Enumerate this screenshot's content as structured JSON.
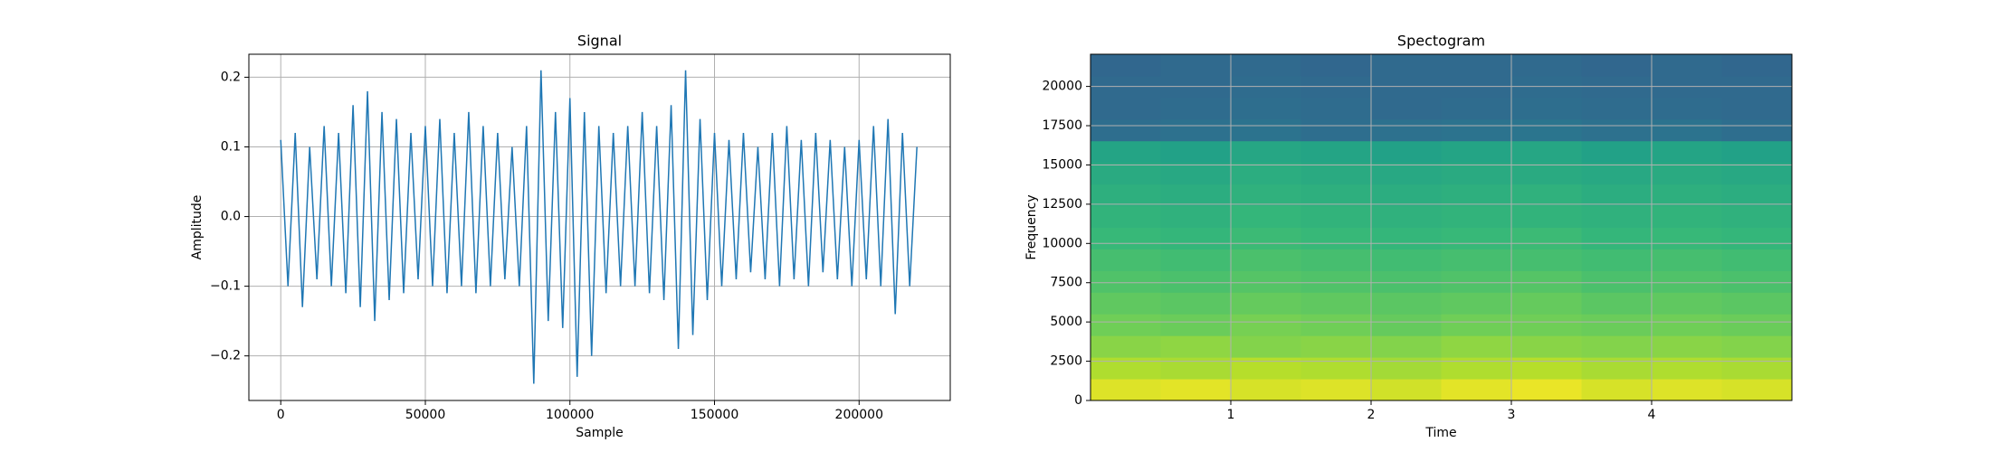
{
  "chart_data": [
    {
      "type": "line",
      "title": "Signal",
      "x_label": "Sample",
      "y_label": "Amplitude",
      "color": "#1f77b4",
      "grid": true,
      "xlim": [
        -11025,
        231525
      ],
      "ylim": [
        -0.264,
        0.233
      ],
      "xticks": [
        0,
        50000,
        100000,
        150000,
        200000
      ],
      "yticks": [
        {
          "value": -0.2,
          "label": "−0.2"
        },
        {
          "value": -0.1,
          "label": "−0.1"
        },
        {
          "value": 0,
          "label": "0.0"
        },
        {
          "value": 0.1,
          "label": "0.1"
        },
        {
          "value": 0.2,
          "label": "0.2"
        }
      ],
      "x": [
        0,
        2500,
        5000,
        7500,
        10000,
        12500,
        15000,
        17500,
        20000,
        22500,
        25000,
        27500,
        30000,
        32500,
        35000,
        37500,
        40000,
        42500,
        45000,
        47500,
        50000,
        52500,
        55000,
        57500,
        60000,
        62500,
        65000,
        67500,
        70000,
        72500,
        75000,
        77500,
        80000,
        82500,
        85000,
        87500,
        90000,
        92500,
        95000,
        97500,
        100000,
        102500,
        105000,
        107500,
        110000,
        112500,
        115000,
        117500,
        120000,
        122500,
        125000,
        127500,
        130000,
        132500,
        135000,
        137500,
        140000,
        142500,
        145000,
        147500,
        150000,
        152500,
        155000,
        157500,
        160000,
        162500,
        165000,
        167500,
        170000,
        172500,
        175000,
        177500,
        180000,
        182500,
        185000,
        187500,
        190000,
        192500,
        195000,
        197500,
        200000,
        202500,
        205000,
        207500,
        210000,
        212500,
        215000,
        217500,
        220000
      ],
      "values": [
        0.11,
        -0.1,
        0.12,
        -0.13,
        0.1,
        -0.09,
        0.13,
        -0.1,
        0.12,
        -0.11,
        0.16,
        -0.13,
        0.18,
        -0.15,
        0.15,
        -0.12,
        0.14,
        -0.11,
        0.12,
        -0.09,
        0.13,
        -0.1,
        0.14,
        -0.11,
        0.12,
        -0.1,
        0.15,
        -0.11,
        0.13,
        -0.1,
        0.12,
        -0.09,
        0.1,
        -0.1,
        0.13,
        -0.24,
        0.21,
        -0.15,
        0.15,
        -0.16,
        0.17,
        -0.23,
        0.15,
        -0.2,
        0.13,
        -0.11,
        0.12,
        -0.1,
        0.13,
        -0.1,
        0.15,
        -0.11,
        0.13,
        -0.12,
        0.16,
        -0.19,
        0.21,
        -0.17,
        0.14,
        -0.12,
        0.12,
        -0.1,
        0.11,
        -0.09,
        0.12,
        -0.08,
        0.1,
        -0.09,
        0.12,
        -0.1,
        0.13,
        -0.09,
        0.11,
        -0.1,
        0.12,
        -0.08,
        0.11,
        -0.09,
        0.1,
        -0.1,
        0.11,
        -0.09,
        0.13,
        -0.1,
        0.14,
        -0.14,
        0.12,
        -0.1,
        0.1
      ]
    },
    {
      "type": "heatmap",
      "title": "Spectogram",
      "x_label": "Time",
      "y_label": "Frequency",
      "colormap": "viridis",
      "grid": true,
      "xlim": [
        0,
        5
      ],
      "ylim": [
        0,
        22050
      ],
      "zlim": [
        -150,
        -50
      ],
      "xticks": [
        1,
        2,
        3,
        4
      ],
      "yticks": [
        0,
        2500,
        5000,
        7500,
        10000,
        12500,
        15000,
        17500,
        20000
      ],
      "z": [
        [
          -55,
          -54,
          -56,
          -55,
          -57,
          -54,
          -53,
          -56,
          -55,
          -56
        ],
        [
          -62,
          -63,
          -61,
          -62,
          -64,
          -62,
          -61,
          -63,
          -62,
          -63
        ],
        [
          -68,
          -67,
          -69,
          -68,
          -69,
          -67,
          -68,
          -69,
          -68,
          -69
        ],
        [
          -72,
          -73,
          -71,
          -72,
          -74,
          -72,
          -72,
          -73,
          -72,
          -73
        ],
        [
          -75,
          -76,
          -74,
          -75,
          -76,
          -75,
          -74,
          -76,
          -75,
          -76
        ],
        [
          -78,
          -79,
          -77,
          -78,
          -79,
          -78,
          -77,
          -79,
          -78,
          -79
        ],
        [
          -80,
          -81,
          -79,
          -80,
          -81,
          -80,
          -80,
          -81,
          -80,
          -81
        ],
        [
          -83,
          -84,
          -82,
          -83,
          -84,
          -83,
          -82,
          -84,
          -83,
          -84
        ],
        [
          -85,
          -86,
          -84,
          -85,
          -86,
          -85,
          -85,
          -86,
          -85,
          -86
        ],
        [
          -87,
          -88,
          -86,
          -87,
          -88,
          -87,
          -86,
          -88,
          -87,
          -88
        ],
        [
          -89,
          -90,
          -88,
          -89,
          -90,
          -89,
          -89,
          -90,
          -89,
          -90
        ],
        [
          -92,
          -93,
          -91,
          -92,
          -93,
          -92,
          -91,
          -93,
          -92,
          -93
        ],
        [
          -114,
          -113,
          -112,
          -114,
          -113,
          -112,
          -111,
          -113,
          -112,
          -114
        ],
        [
          -116,
          -115,
          -114,
          -115,
          -116,
          -115,
          -114,
          -115,
          -115,
          -116
        ],
        [
          -116,
          -116,
          -115,
          -116,
          -116,
          -116,
          -115,
          -116,
          -116,
          -116
        ],
        [
          -117,
          -116,
          -116,
          -117,
          -116,
          -116,
          -116,
          -117,
          -116,
          -117
        ]
      ]
    }
  ]
}
